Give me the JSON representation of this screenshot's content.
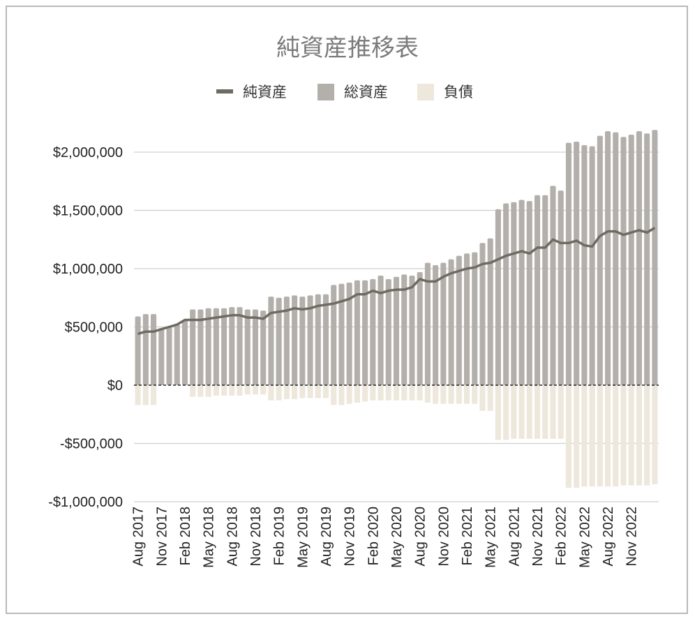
{
  "chart_data": {
    "type": "bar",
    "title": "純資産推移表",
    "legend": {
      "placement": "top",
      "entries": [
        {
          "label": "純資産",
          "color": "#6f6a62",
          "kind": "line"
        },
        {
          "label": "総資産",
          "color": "#b3b0ab",
          "kind": "bar"
        },
        {
          "label": "負債",
          "color": "#ede7dc",
          "kind": "bar"
        }
      ]
    },
    "ylim": [
      -1000000,
      2200000
    ],
    "yticks": [
      {
        "value": 2000000,
        "label": "$2,000,000"
      },
      {
        "value": 1500000,
        "label": "$1,500,000"
      },
      {
        "value": 1000000,
        "label": "$1,000,000"
      },
      {
        "value": 500000,
        "label": "$500,000"
      },
      {
        "value": 0,
        "label": "$0"
      },
      {
        "value": -500000,
        "label": "-$500,000"
      },
      {
        "value": -1000000,
        "label": "-$1,000,000"
      }
    ],
    "grid": true,
    "x_tick_labels": [
      {
        "index": 0,
        "label": "Aug 2017"
      },
      {
        "index": 3,
        "label": "Nov 2017"
      },
      {
        "index": 6,
        "label": "Feb 2018"
      },
      {
        "index": 9,
        "label": "May 2018"
      },
      {
        "index": 12,
        "label": "Aug 2018"
      },
      {
        "index": 15,
        "label": "Nov 2018"
      },
      {
        "index": 18,
        "label": "Feb 2019"
      },
      {
        "index": 21,
        "label": "May 2019"
      },
      {
        "index": 24,
        "label": "Aug 2019"
      },
      {
        "index": 27,
        "label": "Nov 2019"
      },
      {
        "index": 30,
        "label": "Feb 2020"
      },
      {
        "index": 33,
        "label": "May 2020"
      },
      {
        "index": 36,
        "label": "Aug 2020"
      },
      {
        "index": 39,
        "label": "Nov 2020"
      },
      {
        "index": 42,
        "label": "Feb 2021"
      },
      {
        "index": 45,
        "label": "May 2021"
      },
      {
        "index": 48,
        "label": "Aug 2021"
      },
      {
        "index": 51,
        "label": "Nov 2021"
      },
      {
        "index": 54,
        "label": "Feb 2022"
      },
      {
        "index": 57,
        "label": "May 2022"
      },
      {
        "index": 60,
        "label": "Aug 2022"
      },
      {
        "index": 63,
        "label": "Nov 2022"
      }
    ],
    "series": [
      {
        "name": "総資産",
        "type": "bar",
        "color": "#b3b0ab",
        "values": [
          590000,
          610000,
          610000,
          490000,
          500000,
          520000,
          560000,
          650000,
          650000,
          660000,
          660000,
          660000,
          670000,
          670000,
          650000,
          650000,
          640000,
          760000,
          750000,
          760000,
          770000,
          760000,
          770000,
          780000,
          780000,
          860000,
          870000,
          880000,
          900000,
          900000,
          910000,
          940000,
          910000,
          930000,
          950000,
          940000,
          970000,
          1050000,
          1030000,
          1050000,
          1080000,
          1110000,
          1130000,
          1140000,
          1220000,
          1260000,
          1510000,
          1560000,
          1570000,
          1590000,
          1580000,
          1630000,
          1630000,
          1710000,
          1670000,
          2080000,
          2090000,
          2060000,
          2050000,
          2140000,
          2180000,
          2170000,
          2130000,
          2150000,
          2180000,
          2160000,
          2190000
        ]
      },
      {
        "name": "負債",
        "type": "bar",
        "color": "#ede7dc",
        "values": [
          -170000,
          -170000,
          -170000,
          0,
          0,
          0,
          0,
          -100000,
          -100000,
          -100000,
          -90000,
          -90000,
          -90000,
          -90000,
          -80000,
          -80000,
          -80000,
          -130000,
          -130000,
          -120000,
          -120000,
          -110000,
          -110000,
          -110000,
          -110000,
          -170000,
          -170000,
          -160000,
          -150000,
          -140000,
          -130000,
          -130000,
          -130000,
          -130000,
          -130000,
          -130000,
          -130000,
          -150000,
          -160000,
          -160000,
          -160000,
          -160000,
          -160000,
          -160000,
          -220000,
          -220000,
          -470000,
          -470000,
          -460000,
          -460000,
          -460000,
          -460000,
          -460000,
          -460000,
          -460000,
          -880000,
          -880000,
          -870000,
          -870000,
          -870000,
          -870000,
          -870000,
          -860000,
          -860000,
          -860000,
          -860000,
          -850000
        ]
      },
      {
        "name": "純資産",
        "type": "line",
        "color": "#6f6a62",
        "values": [
          440000,
          460000,
          460000,
          480000,
          500000,
          520000,
          560000,
          560000,
          560000,
          570000,
          580000,
          590000,
          600000,
          600000,
          580000,
          580000,
          570000,
          620000,
          630000,
          640000,
          660000,
          650000,
          660000,
          680000,
          690000,
          700000,
          720000,
          740000,
          780000,
          780000,
          810000,
          790000,
          810000,
          820000,
          820000,
          840000,
          910000,
          890000,
          890000,
          930000,
          960000,
          980000,
          1000000,
          1010000,
          1040000,
          1050000,
          1080000,
          1110000,
          1130000,
          1150000,
          1130000,
          1180000,
          1180000,
          1250000,
          1220000,
          1220000,
          1240000,
          1200000,
          1190000,
          1280000,
          1320000,
          1320000,
          1290000,
          1310000,
          1330000,
          1310000,
          1350000
        ]
      }
    ]
  }
}
